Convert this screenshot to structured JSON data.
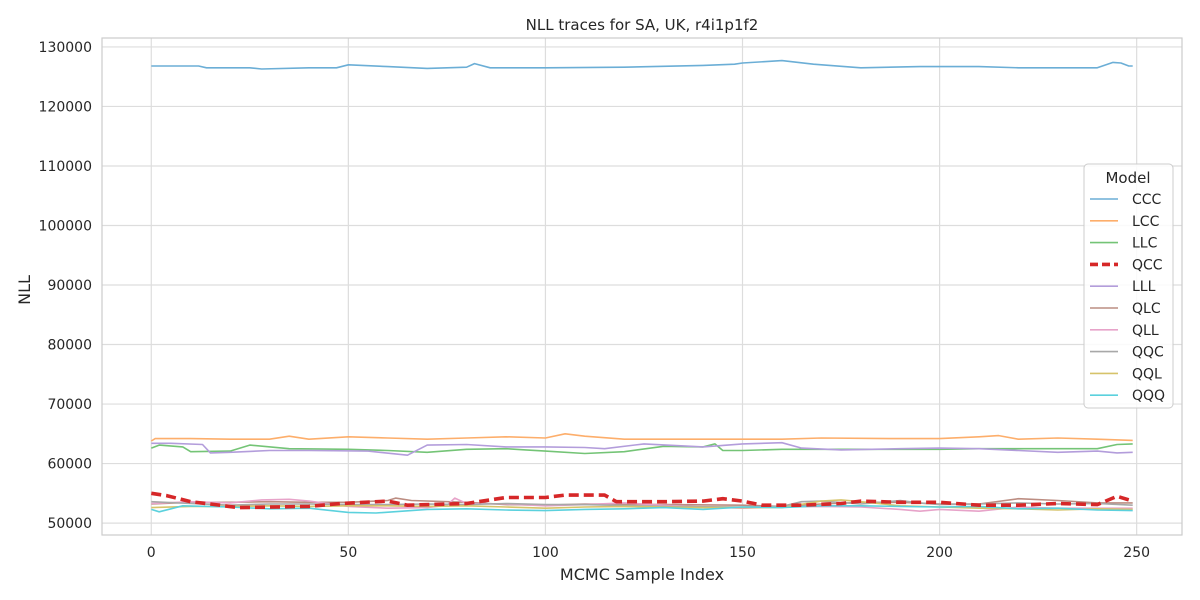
{
  "chart_data": {
    "type": "line",
    "title": "NLL traces for SA, UK, r4i1p1f2",
    "xlabel": "MCMC Sample Index",
    "ylabel": "NLL",
    "xlim": [
      -12.5,
      261.5
    ],
    "ylim": [
      48000,
      131500
    ],
    "xticks": [
      0,
      50,
      100,
      150,
      200,
      250
    ],
    "yticks": [
      50000,
      60000,
      70000,
      80000,
      90000,
      100000,
      110000,
      120000,
      130000
    ],
    "xtick_labels": [
      "0",
      "50",
      "100",
      "150",
      "200",
      "250"
    ],
    "ytick_labels": [
      "50000",
      "60000",
      "70000",
      "80000",
      "90000",
      "100000",
      "110000",
      "120000",
      "130000"
    ],
    "grid": true,
    "legend_title": "Model",
    "legend_position": "center-right",
    "series": [
      {
        "name": "CCC",
        "color": "#6baed6",
        "dashed": false,
        "points": [
          [
            0,
            126800
          ],
          [
            12,
            126800
          ],
          [
            14,
            126500
          ],
          [
            25,
            126500
          ],
          [
            28,
            126300
          ],
          [
            40,
            126500
          ],
          [
            47,
            126500
          ],
          [
            50,
            127000
          ],
          [
            60,
            126700
          ],
          [
            70,
            126400
          ],
          [
            80,
            126600
          ],
          [
            82,
            127200
          ],
          [
            86,
            126500
          ],
          [
            100,
            126500
          ],
          [
            120,
            126600
          ],
          [
            140,
            126900
          ],
          [
            148,
            127100
          ],
          [
            150,
            127300
          ],
          [
            160,
            127700
          ],
          [
            168,
            127100
          ],
          [
            180,
            126500
          ],
          [
            195,
            126700
          ],
          [
            200,
            126700
          ],
          [
            210,
            126700
          ],
          [
            220,
            126500
          ],
          [
            230,
            126500
          ],
          [
            240,
            126500
          ],
          [
            244,
            127400
          ],
          [
            246,
            127300
          ],
          [
            248,
            126800
          ],
          [
            249,
            126800
          ]
        ]
      },
      {
        "name": "LCC",
        "color": "#fdae6b",
        "dashed": false,
        "points": [
          [
            0,
            63800
          ],
          [
            1,
            64200
          ],
          [
            10,
            64200
          ],
          [
            20,
            64100
          ],
          [
            30,
            64100
          ],
          [
            35,
            64600
          ],
          [
            40,
            64100
          ],
          [
            50,
            64500
          ],
          [
            60,
            64300
          ],
          [
            70,
            64100
          ],
          [
            80,
            64300
          ],
          [
            90,
            64500
          ],
          [
            100,
            64300
          ],
          [
            105,
            65000
          ],
          [
            110,
            64600
          ],
          [
            120,
            64100
          ],
          [
            140,
            64100
          ],
          [
            150,
            64100
          ],
          [
            160,
            64100
          ],
          [
            170,
            64300
          ],
          [
            190,
            64200
          ],
          [
            200,
            64200
          ],
          [
            210,
            64500
          ],
          [
            215,
            64700
          ],
          [
            220,
            64100
          ],
          [
            230,
            64300
          ],
          [
            240,
            64100
          ],
          [
            249,
            63900
          ]
        ]
      },
      {
        "name": "LLC",
        "color": "#74c476",
        "dashed": false,
        "points": [
          [
            0,
            62600
          ],
          [
            2,
            63100
          ],
          [
            8,
            62800
          ],
          [
            10,
            62000
          ],
          [
            20,
            62100
          ],
          [
            25,
            63100
          ],
          [
            35,
            62500
          ],
          [
            50,
            62400
          ],
          [
            60,
            62200
          ],
          [
            70,
            61900
          ],
          [
            80,
            62400
          ],
          [
            90,
            62500
          ],
          [
            95,
            62300
          ],
          [
            100,
            62100
          ],
          [
            110,
            61700
          ],
          [
            120,
            62000
          ],
          [
            130,
            62900
          ],
          [
            140,
            62800
          ],
          [
            143,
            63300
          ],
          [
            145,
            62200
          ],
          [
            150,
            62200
          ],
          [
            160,
            62400
          ],
          [
            170,
            62400
          ],
          [
            180,
            62400
          ],
          [
            190,
            62400
          ],
          [
            200,
            62400
          ],
          [
            210,
            62500
          ],
          [
            220,
            62500
          ],
          [
            230,
            62500
          ],
          [
            240,
            62500
          ],
          [
            245,
            63200
          ],
          [
            249,
            63300
          ]
        ]
      },
      {
        "name": "QCC",
        "color": "#d62728",
        "dashed": true,
        "points": [
          [
            0,
            55000
          ],
          [
            4,
            54600
          ],
          [
            10,
            53600
          ],
          [
            15,
            53200
          ],
          [
            22,
            52600
          ],
          [
            40,
            52800
          ],
          [
            48,
            53300
          ],
          [
            60,
            53700
          ],
          [
            65,
            53000
          ],
          [
            80,
            53300
          ],
          [
            90,
            54300
          ],
          [
            100,
            54300
          ],
          [
            105,
            54700
          ],
          [
            115,
            54700
          ],
          [
            118,
            53600
          ],
          [
            130,
            53600
          ],
          [
            140,
            53700
          ],
          [
            145,
            54100
          ],
          [
            150,
            53700
          ],
          [
            155,
            53000
          ],
          [
            165,
            53000
          ],
          [
            175,
            53300
          ],
          [
            180,
            53700
          ],
          [
            190,
            53500
          ],
          [
            200,
            53500
          ],
          [
            210,
            53000
          ],
          [
            220,
            53000
          ],
          [
            230,
            53300
          ],
          [
            240,
            53100
          ],
          [
            245,
            54500
          ],
          [
            249,
            53700
          ]
        ]
      },
      {
        "name": "LLL",
        "color": "#b39ddb",
        "dashed": false,
        "points": [
          [
            0,
            63400
          ],
          [
            5,
            63400
          ],
          [
            13,
            63200
          ],
          [
            15,
            61800
          ],
          [
            20,
            61900
          ],
          [
            30,
            62200
          ],
          [
            40,
            62200
          ],
          [
            55,
            62100
          ],
          [
            65,
            61400
          ],
          [
            70,
            63100
          ],
          [
            80,
            63200
          ],
          [
            90,
            62800
          ],
          [
            100,
            62800
          ],
          [
            110,
            62700
          ],
          [
            115,
            62500
          ],
          [
            125,
            63300
          ],
          [
            140,
            62800
          ],
          [
            150,
            63300
          ],
          [
            160,
            63500
          ],
          [
            165,
            62600
          ],
          [
            175,
            62300
          ],
          [
            190,
            62500
          ],
          [
            200,
            62600
          ],
          [
            210,
            62500
          ],
          [
            220,
            62200
          ],
          [
            230,
            61900
          ],
          [
            240,
            62100
          ],
          [
            245,
            61800
          ],
          [
            249,
            61900
          ]
        ]
      },
      {
        "name": "QLC",
        "color": "#bc8d82",
        "dashed": false,
        "points": [
          [
            0,
            53200
          ],
          [
            10,
            53500
          ],
          [
            20,
            53500
          ],
          [
            30,
            53600
          ],
          [
            40,
            53500
          ],
          [
            50,
            53500
          ],
          [
            60,
            53800
          ],
          [
            62,
            54200
          ],
          [
            66,
            53800
          ],
          [
            80,
            53500
          ],
          [
            90,
            53100
          ],
          [
            100,
            53000
          ],
          [
            110,
            53200
          ],
          [
            130,
            53100
          ],
          [
            150,
            53000
          ],
          [
            160,
            52800
          ],
          [
            170,
            53200
          ],
          [
            180,
            53500
          ],
          [
            190,
            53500
          ],
          [
            200,
            53200
          ],
          [
            210,
            53200
          ],
          [
            220,
            54100
          ],
          [
            230,
            53800
          ],
          [
            240,
            53400
          ],
          [
            249,
            53400
          ]
        ]
      },
      {
        "name": "QLL",
        "color": "#e7a3c9",
        "dashed": false,
        "points": [
          [
            0,
            53300
          ],
          [
            10,
            53600
          ],
          [
            20,
            53400
          ],
          [
            28,
            53900
          ],
          [
            35,
            54000
          ],
          [
            40,
            53700
          ],
          [
            50,
            52800
          ],
          [
            60,
            52500
          ],
          [
            70,
            52600
          ],
          [
            75,
            53000
          ],
          [
            77,
            54200
          ],
          [
            80,
            53300
          ],
          [
            90,
            53200
          ],
          [
            100,
            52900
          ],
          [
            110,
            53100
          ],
          [
            120,
            53400
          ],
          [
            130,
            53000
          ],
          [
            140,
            52700
          ],
          [
            150,
            52500
          ],
          [
            160,
            52700
          ],
          [
            170,
            52800
          ],
          [
            180,
            52700
          ],
          [
            190,
            52300
          ],
          [
            195,
            52000
          ],
          [
            200,
            52300
          ],
          [
            210,
            52000
          ],
          [
            220,
            52700
          ],
          [
            230,
            52500
          ],
          [
            240,
            52500
          ],
          [
            249,
            52500
          ]
        ]
      },
      {
        "name": "QQC",
        "color": "#a8a8a8",
        "dashed": false,
        "points": [
          [
            0,
            53600
          ],
          [
            10,
            53300
          ],
          [
            20,
            53000
          ],
          [
            30,
            53200
          ],
          [
            40,
            53200
          ],
          [
            50,
            53100
          ],
          [
            60,
            53100
          ],
          [
            70,
            53200
          ],
          [
            80,
            53100
          ],
          [
            90,
            53300
          ],
          [
            100,
            53100
          ],
          [
            110,
            53100
          ],
          [
            130,
            52800
          ],
          [
            150,
            52700
          ],
          [
            160,
            52800
          ],
          [
            165,
            53600
          ],
          [
            170,
            53700
          ],
          [
            180,
            53200
          ],
          [
            190,
            53800
          ],
          [
            195,
            53400
          ],
          [
            200,
            53100
          ],
          [
            210,
            53200
          ],
          [
            220,
            53400
          ],
          [
            230,
            53200
          ],
          [
            240,
            53300
          ],
          [
            249,
            53000
          ]
        ]
      },
      {
        "name": "QQL",
        "color": "#d6c36a",
        "dashed": false,
        "points": [
          [
            0,
            52600
          ],
          [
            10,
            52800
          ],
          [
            20,
            52800
          ],
          [
            30,
            52900
          ],
          [
            40,
            52800
          ],
          [
            50,
            52900
          ],
          [
            60,
            52900
          ],
          [
            70,
            52800
          ],
          [
            80,
            52900
          ],
          [
            90,
            52700
          ],
          [
            100,
            52500
          ],
          [
            110,
            52700
          ],
          [
            120,
            52800
          ],
          [
            130,
            52700
          ],
          [
            140,
            52600
          ],
          [
            150,
            52600
          ],
          [
            160,
            52600
          ],
          [
            170,
            53700
          ],
          [
            175,
            53900
          ],
          [
            180,
            53600
          ],
          [
            190,
            52900
          ],
          [
            200,
            52700
          ],
          [
            210,
            52500
          ],
          [
            220,
            52400
          ],
          [
            230,
            52200
          ],
          [
            240,
            52400
          ],
          [
            249,
            52300
          ]
        ]
      },
      {
        "name": "QQQ",
        "color": "#5bd1dd",
        "dashed": false,
        "points": [
          [
            0,
            52300
          ],
          [
            2,
            51900
          ],
          [
            5,
            52400
          ],
          [
            8,
            52900
          ],
          [
            20,
            52700
          ],
          [
            30,
            52400
          ],
          [
            40,
            52500
          ],
          [
            50,
            51800
          ],
          [
            57,
            51700
          ],
          [
            70,
            52300
          ],
          [
            80,
            52400
          ],
          [
            90,
            52200
          ],
          [
            100,
            52100
          ],
          [
            110,
            52300
          ],
          [
            120,
            52400
          ],
          [
            130,
            52600
          ],
          [
            140,
            52300
          ],
          [
            150,
            52700
          ],
          [
            160,
            52600
          ],
          [
            170,
            52900
          ],
          [
            180,
            52900
          ],
          [
            190,
            52800
          ],
          [
            200,
            52700
          ],
          [
            210,
            52800
          ],
          [
            220,
            52400
          ],
          [
            230,
            52500
          ],
          [
            240,
            52200
          ],
          [
            249,
            52100
          ]
        ]
      }
    ]
  }
}
